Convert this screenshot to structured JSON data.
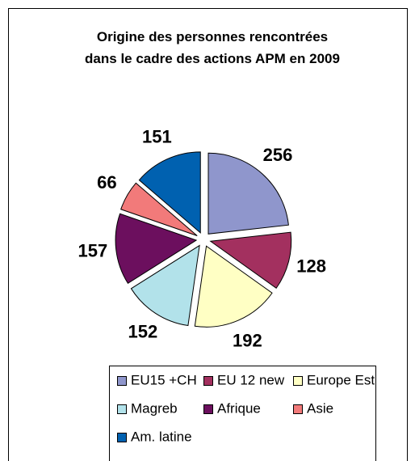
{
  "chart_data": {
    "type": "pie",
    "title": "Origine des personnes rencontrées dans le cadre des actions APM en 2009",
    "categories": [
      "EU15 +CH",
      "EU 12 new",
      "Europe Est",
      "Magreb",
      "Afrique",
      "Asie",
      "Am. latine"
    ],
    "values": [
      256,
      128,
      192,
      152,
      157,
      66,
      151
    ],
    "colors": [
      "#8f96cc",
      "#a3305f",
      "#ffffc4",
      "#b2e2ea",
      "#6c0f5e",
      "#f27a7a",
      "#0061b0"
    ],
    "legend": "bottom"
  }
}
